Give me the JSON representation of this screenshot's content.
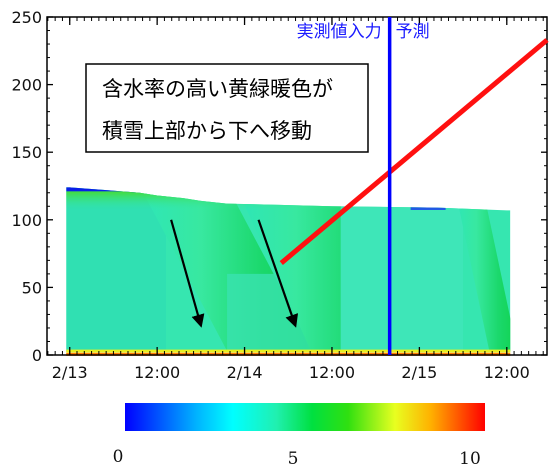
{
  "chart_data": {
    "type": "heatmap",
    "title": "",
    "xlabel": "",
    "ylabel": "",
    "ylim": [
      0,
      250
    ],
    "y_ticks": [
      "0",
      "50",
      "100",
      "150",
      "200",
      "250"
    ],
    "x_ticks": [
      "2/13",
      "12:00",
      "2/14",
      "12:00",
      "2/15",
      "12:00"
    ],
    "snow_surface_height": [
      {
        "t": 0.0,
        "h": 124
      },
      {
        "t": 0.2,
        "h": 122
      },
      {
        "t": 0.4,
        "h": 120
      },
      {
        "t": 0.5,
        "h": 118
      },
      {
        "t": 0.65,
        "h": 116
      },
      {
        "t": 0.75,
        "h": 114
      },
      {
        "t": 0.9,
        "h": 112
      },
      {
        "t": 1.2,
        "h": 111
      },
      {
        "t": 1.5,
        "h": 110
      },
      {
        "t": 2.1,
        "h": 109
      },
      {
        "t": 2.5,
        "h": 107
      }
    ],
    "divider": {
      "label_left": "実測値入力",
      "label_right": "予測",
      "color": "#0000ff"
    },
    "annotation": {
      "lines": [
        "含水率の高い黄緑暖色が",
        "積雪上部から下へ移動"
      ]
    },
    "colorbar": {
      "min_label": "0",
      "mid_label": "5",
      "max_label": "10"
    }
  }
}
